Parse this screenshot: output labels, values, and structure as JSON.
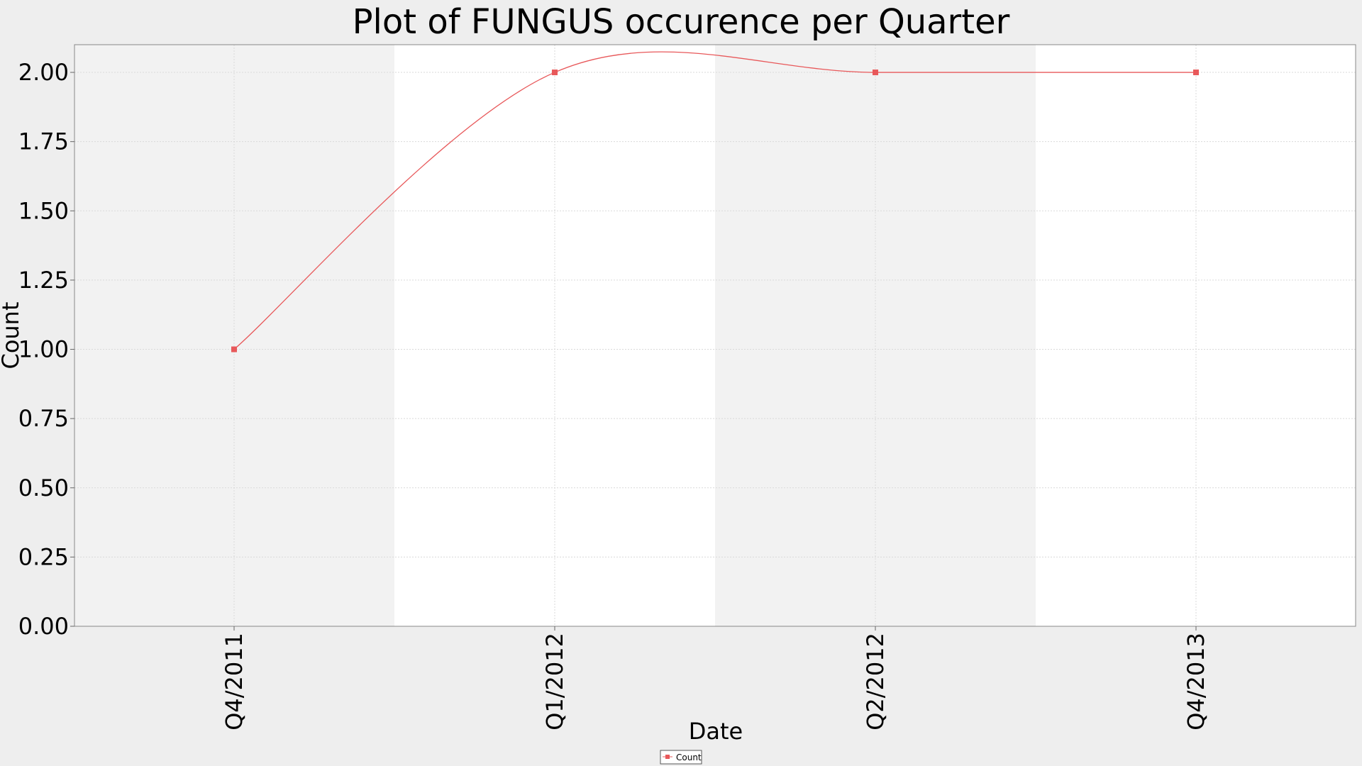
{
  "chart_data": {
    "type": "line",
    "title": "Plot of FUNGUS occurence per Quarter",
    "xlabel": "Date",
    "ylabel": "Count",
    "categories": [
      "Q4/2011",
      "Q1/2012",
      "Q2/2012",
      "Q4/2013"
    ],
    "series": [
      {
        "name": "Count",
        "values": [
          1,
          2,
          2,
          2
        ],
        "color": "#e8585a"
      }
    ],
    "ylim": [
      0,
      2.1
    ],
    "yticks": [
      "0.00",
      "0.25",
      "0.50",
      "0.75",
      "1.00",
      "1.25",
      "1.50",
      "1.75",
      "2.00"
    ],
    "grid": true,
    "legend_position": "bottom-center",
    "band_colors": [
      "#f2f2f2",
      "#ffffff"
    ]
  }
}
